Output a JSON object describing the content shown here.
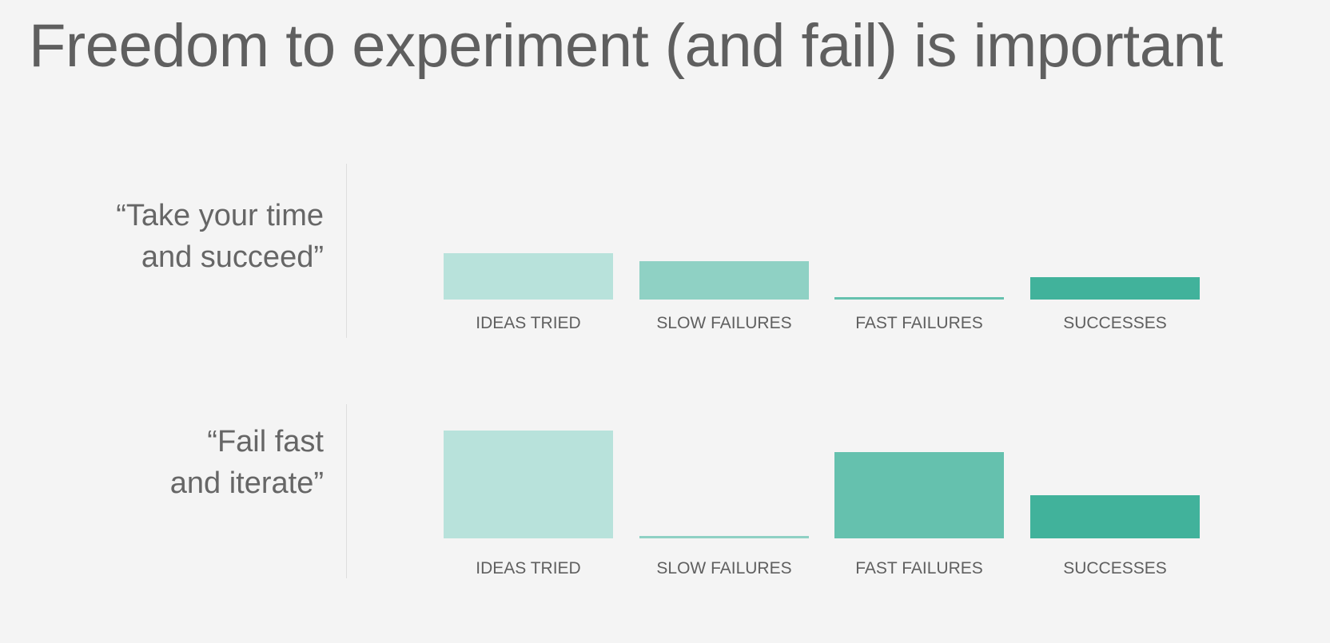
{
  "title": "Freedom to experiment (and fail) is important",
  "chart_data": [
    {
      "type": "bar",
      "label_lines": [
        "“Take your time",
        "and succeed”"
      ],
      "categories": [
        "IDEAS TRIED",
        "SLOW FAILURES",
        "FAST FAILURES",
        "SUCCESSES"
      ],
      "values": [
        58,
        48,
        3,
        28
      ],
      "colors": [
        "#b8e2db",
        "#8fd1c4",
        "#65c1ae",
        "#41b29b"
      ],
      "ylim": [
        0,
        140
      ],
      "grid": false
    },
    {
      "type": "bar",
      "label_lines": [
        "“Fail fast",
        "and iterate”"
      ],
      "categories": [
        "IDEAS TRIED",
        "SLOW FAILURES",
        "FAST FAILURES",
        "SUCCESSES"
      ],
      "values": [
        135,
        3,
        108,
        54
      ],
      "colors": [
        "#b8e2db",
        "#8fd1c4",
        "#65c1ae",
        "#41b29b"
      ],
      "ylim": [
        0,
        140
      ],
      "grid": false
    }
  ]
}
